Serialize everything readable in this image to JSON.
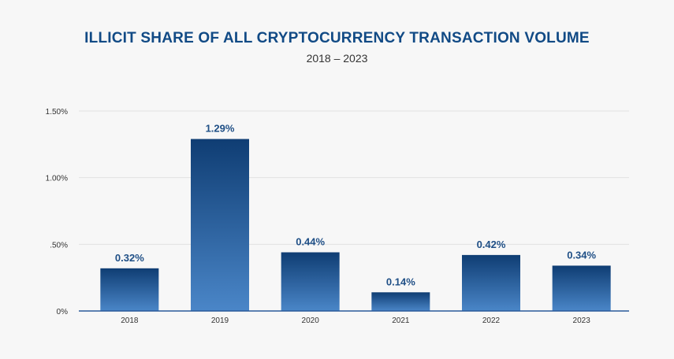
{
  "chart_data": {
    "type": "bar",
    "title": "ILLICIT SHARE OF ALL CRYPTOCURRENCY TRANSACTION VOLUME",
    "subtitle": "2018 – 2023",
    "categories": [
      "2018",
      "2019",
      "2020",
      "2021",
      "2022",
      "2023"
    ],
    "values": [
      0.32,
      1.29,
      0.44,
      0.14,
      0.42,
      0.34
    ],
    "data_labels": [
      "0.32%",
      "1.29%",
      "0.44%",
      "0.14%",
      "0.42%",
      "0.34%"
    ],
    "ylim": [
      0,
      1.5
    ],
    "yticks": [
      {
        "value": 0,
        "label": "0%"
      },
      {
        "value": 0.5,
        "label": ".50%"
      },
      {
        "value": 1.0,
        "label": "1.00%"
      },
      {
        "value": 1.5,
        "label": "1.50%"
      }
    ],
    "grid": true,
    "xlabel": "",
    "ylabel": "",
    "colors": {
      "bar_top": "#0f3d73",
      "bar_bottom": "#4a86c8",
      "label": "#1f4f86",
      "title": "#114a85",
      "axis": "#2a5a9a",
      "grid": "#e2e2e2"
    }
  }
}
